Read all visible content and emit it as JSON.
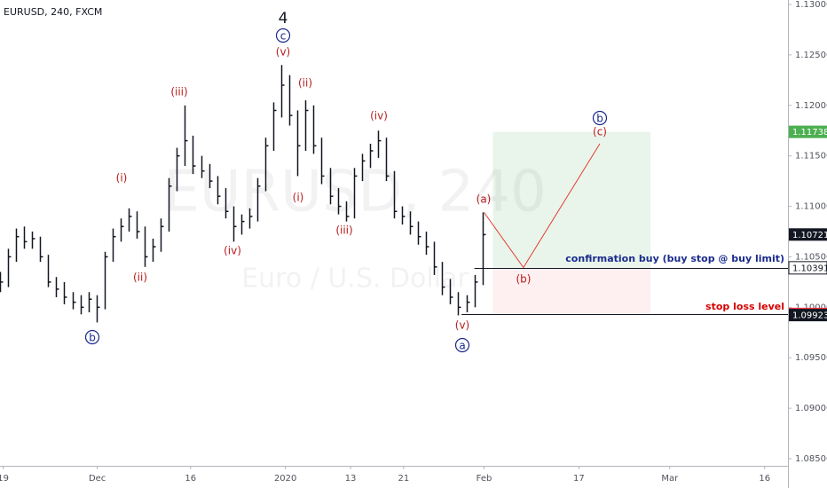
{
  "chart_data": {
    "type": "hlc",
    "title": "EURUSD, 240, FXCM",
    "watermark": [
      "EURUSD, 240",
      "Euro / U.S. Dollar"
    ],
    "color": "#131722",
    "x": [
      0,
      1,
      2,
      3,
      4,
      5,
      6,
      7,
      8,
      9,
      10,
      11,
      12,
      13,
      14,
      15,
      16,
      17,
      18,
      19,
      20,
      21,
      22,
      23,
      24,
      25,
      26,
      27,
      28,
      29,
      30,
      31,
      32,
      33,
      34,
      35,
      36,
      37,
      38,
      39,
      40,
      41,
      42,
      43,
      44,
      45,
      46,
      47,
      48,
      49,
      50,
      51,
      52,
      53,
      54,
      55,
      56,
      57,
      58,
      59,
      60
    ],
    "high": [
      1.1035,
      1.1058,
      1.1078,
      1.108,
      1.1075,
      1.107,
      1.1052,
      1.103,
      1.1025,
      1.1015,
      1.1012,
      1.1015,
      1.1012,
      1.1055,
      1.1078,
      1.1088,
      1.1098,
      1.1095,
      1.108,
      1.1068,
      1.1088,
      1.1128,
      1.1158,
      1.12,
      1.117,
      1.115,
      1.1142,
      1.113,
      1.1118,
      1.11,
      1.1092,
      1.1098,
      1.1128,
      1.1168,
      1.1203,
      1.124,
      1.123,
      1.1195,
      1.1205,
      1.12,
      1.1168,
      1.1138,
      1.1118,
      1.1105,
      1.1138,
      1.1152,
      1.1162,
      1.1175,
      1.1168,
      1.1135,
      1.11,
      1.1095,
      1.1085,
      1.1075,
      1.1065,
      1.1045,
      1.1028,
      1.1015,
      1.1012,
      1.1032,
      1.1094
    ],
    "low": [
      1.1015,
      1.102,
      1.1045,
      1.1058,
      1.1058,
      1.1045,
      1.102,
      1.101,
      1.1003,
      1.0998,
      1.0993,
      1.0995,
      1.0985,
      1.0998,
      1.1045,
      1.1065,
      1.1075,
      1.1068,
      1.104,
      1.1045,
      1.1055,
      1.1075,
      1.1115,
      1.114,
      1.1132,
      1.1128,
      1.1118,
      1.1102,
      1.1088,
      1.1065,
      1.1072,
      1.1078,
      1.1085,
      1.1115,
      1.1155,
      1.1188,
      1.118,
      1.113,
      1.1155,
      1.1152,
      1.1122,
      1.1102,
      1.1092,
      1.1085,
      1.1088,
      1.1125,
      1.1138,
      1.1148,
      1.1125,
      1.1088,
      1.1082,
      1.1072,
      1.1062,
      1.1052,
      1.1032,
      1.1012,
      1.1003,
      1.0992,
      1.0995,
      1.1,
      1.1022
    ],
    "close": [
      1.1025,
      1.105,
      1.107,
      1.1065,
      1.1068,
      1.105,
      1.1025,
      1.1018,
      1.101,
      1.1005,
      1.1,
      1.1008,
      1.1,
      1.105,
      1.107,
      1.108,
      1.109,
      1.1075,
      1.105,
      1.106,
      1.108,
      1.112,
      1.115,
      1.1165,
      1.114,
      1.1135,
      1.1125,
      1.111,
      1.1095,
      1.108,
      1.1085,
      1.109,
      1.112,
      1.116,
      1.1195,
      1.122,
      1.119,
      1.116,
      1.1195,
      1.116,
      1.113,
      1.111,
      1.11,
      1.109,
      1.113,
      1.1145,
      1.1155,
      1.1165,
      1.113,
      1.1095,
      1.109,
      1.108,
      1.107,
      1.106,
      1.104,
      1.102,
      1.101,
      1.1,
      1.1005,
      1.1025,
      1.1072
    ],
    "xlim": [
      0,
      98
    ],
    "xticks": [
      {
        "value": 0.4,
        "label": "19"
      },
      {
        "value": 12.1,
        "label": "Dec"
      },
      {
        "value": 23.7,
        "label": "16"
      },
      {
        "value": 35.5,
        "label": "2020"
      },
      {
        "value": 43.6,
        "label": "13"
      },
      {
        "value": 50.2,
        "label": "21"
      },
      {
        "value": 60.2,
        "label": "Feb"
      },
      {
        "value": 72,
        "label": "17"
      },
      {
        "value": 83.3,
        "label": "Mar"
      },
      {
        "value": 95.1,
        "label": "16"
      }
    ],
    "ylim": [
      1.085,
      1.13
    ],
    "yticks": [
      {
        "value": 1.085,
        "label": "1.08500"
      },
      {
        "value": 1.09,
        "label": "1.09000"
      },
      {
        "value": 1.095,
        "label": "1.09500"
      },
      {
        "value": 1.1,
        "label": "1.10000"
      },
      {
        "value": 1.105,
        "label": "1.10500"
      },
      {
        "value": 1.11,
        "label": "1.11000"
      },
      {
        "value": 1.115,
        "label": "1.11500"
      },
      {
        "value": 1.12,
        "label": "1.12000"
      },
      {
        "value": 1.125,
        "label": "1.12500"
      },
      {
        "value": 1.13,
        "label": "1.13000"
      }
    ],
    "price_markers": [
      {
        "value": 1.11738,
        "color": "#4caf50"
      },
      {
        "value": 1.10721,
        "color": "#131722"
      },
      {
        "value": 1.10394,
        "color": "#131722"
      },
      {
        "value": 1.10391,
        "color": "#ffffff"
      },
      {
        "value": 1.09934,
        "color": "#f23645"
      },
      {
        "value": 1.09923,
        "color": "#131722"
      }
    ],
    "position": {
      "x": [
        61.3,
        80.9
      ],
      "target": 1.11738,
      "entry": 1.10394,
      "stop": 1.09923
    },
    "lines": [
      {
        "value": 1.10394,
        "x0": 59
      },
      {
        "value": 1.09934,
        "x0": 57.4
      }
    ],
    "projection": {
      "x": [
        60.2,
        65.1,
        74.6
      ],
      "y": [
        1.1094,
        1.10394,
        1.1162
      ],
      "color": "#e53935"
    },
    "annotations": [
      {
        "text": "4",
        "color": "#131722",
        "circled": false
      },
      {
        "text": "c",
        "color": "#1a2a8c",
        "circled": true
      },
      {
        "text": "(v)",
        "color": "#b71c1c",
        "circled": false
      },
      {
        "text": "(iii)",
        "color": "#b71c1c",
        "circled": false
      },
      {
        "text": "(ii)",
        "color": "#b71c1c",
        "circled": false
      },
      {
        "text": "(iv)",
        "color": "#b71c1c",
        "circled": false
      },
      {
        "text": "(i)",
        "color": "#b71c1c",
        "circled": false
      },
      {
        "text": "(ii)",
        "color": "#b71c1c",
        "circled": false
      },
      {
        "text": "(iv)",
        "color": "#b71c1c",
        "circled": false
      },
      {
        "text": "(i)",
        "color": "#b71c1c",
        "circled": false
      },
      {
        "text": "(iii)",
        "color": "#b71c1c",
        "circled": false
      },
      {
        "text": "b",
        "color": "#1a2a8c",
        "circled": true
      },
      {
        "text": "(v)",
        "color": "#b71c1c",
        "circled": false
      },
      {
        "text": "a",
        "color": "#1a2a8c",
        "circled": true
      },
      {
        "text": "(a)",
        "color": "#b71c1c",
        "circled": false
      },
      {
        "text": "(b)",
        "color": "#b71c1c",
        "circled": false
      },
      {
        "text": "b",
        "color": "#1a2a8c",
        "circled": true
      },
      {
        "text": "(c)",
        "color": "#b71c1c",
        "circled": false
      },
      {
        "text": "confirmation buy (buy stop @ buy limit)",
        "color": "#1a2a8c",
        "circled": false
      },
      {
        "text": "stop loss level",
        "color": "#d50000",
        "circled": false
      }
    ]
  }
}
